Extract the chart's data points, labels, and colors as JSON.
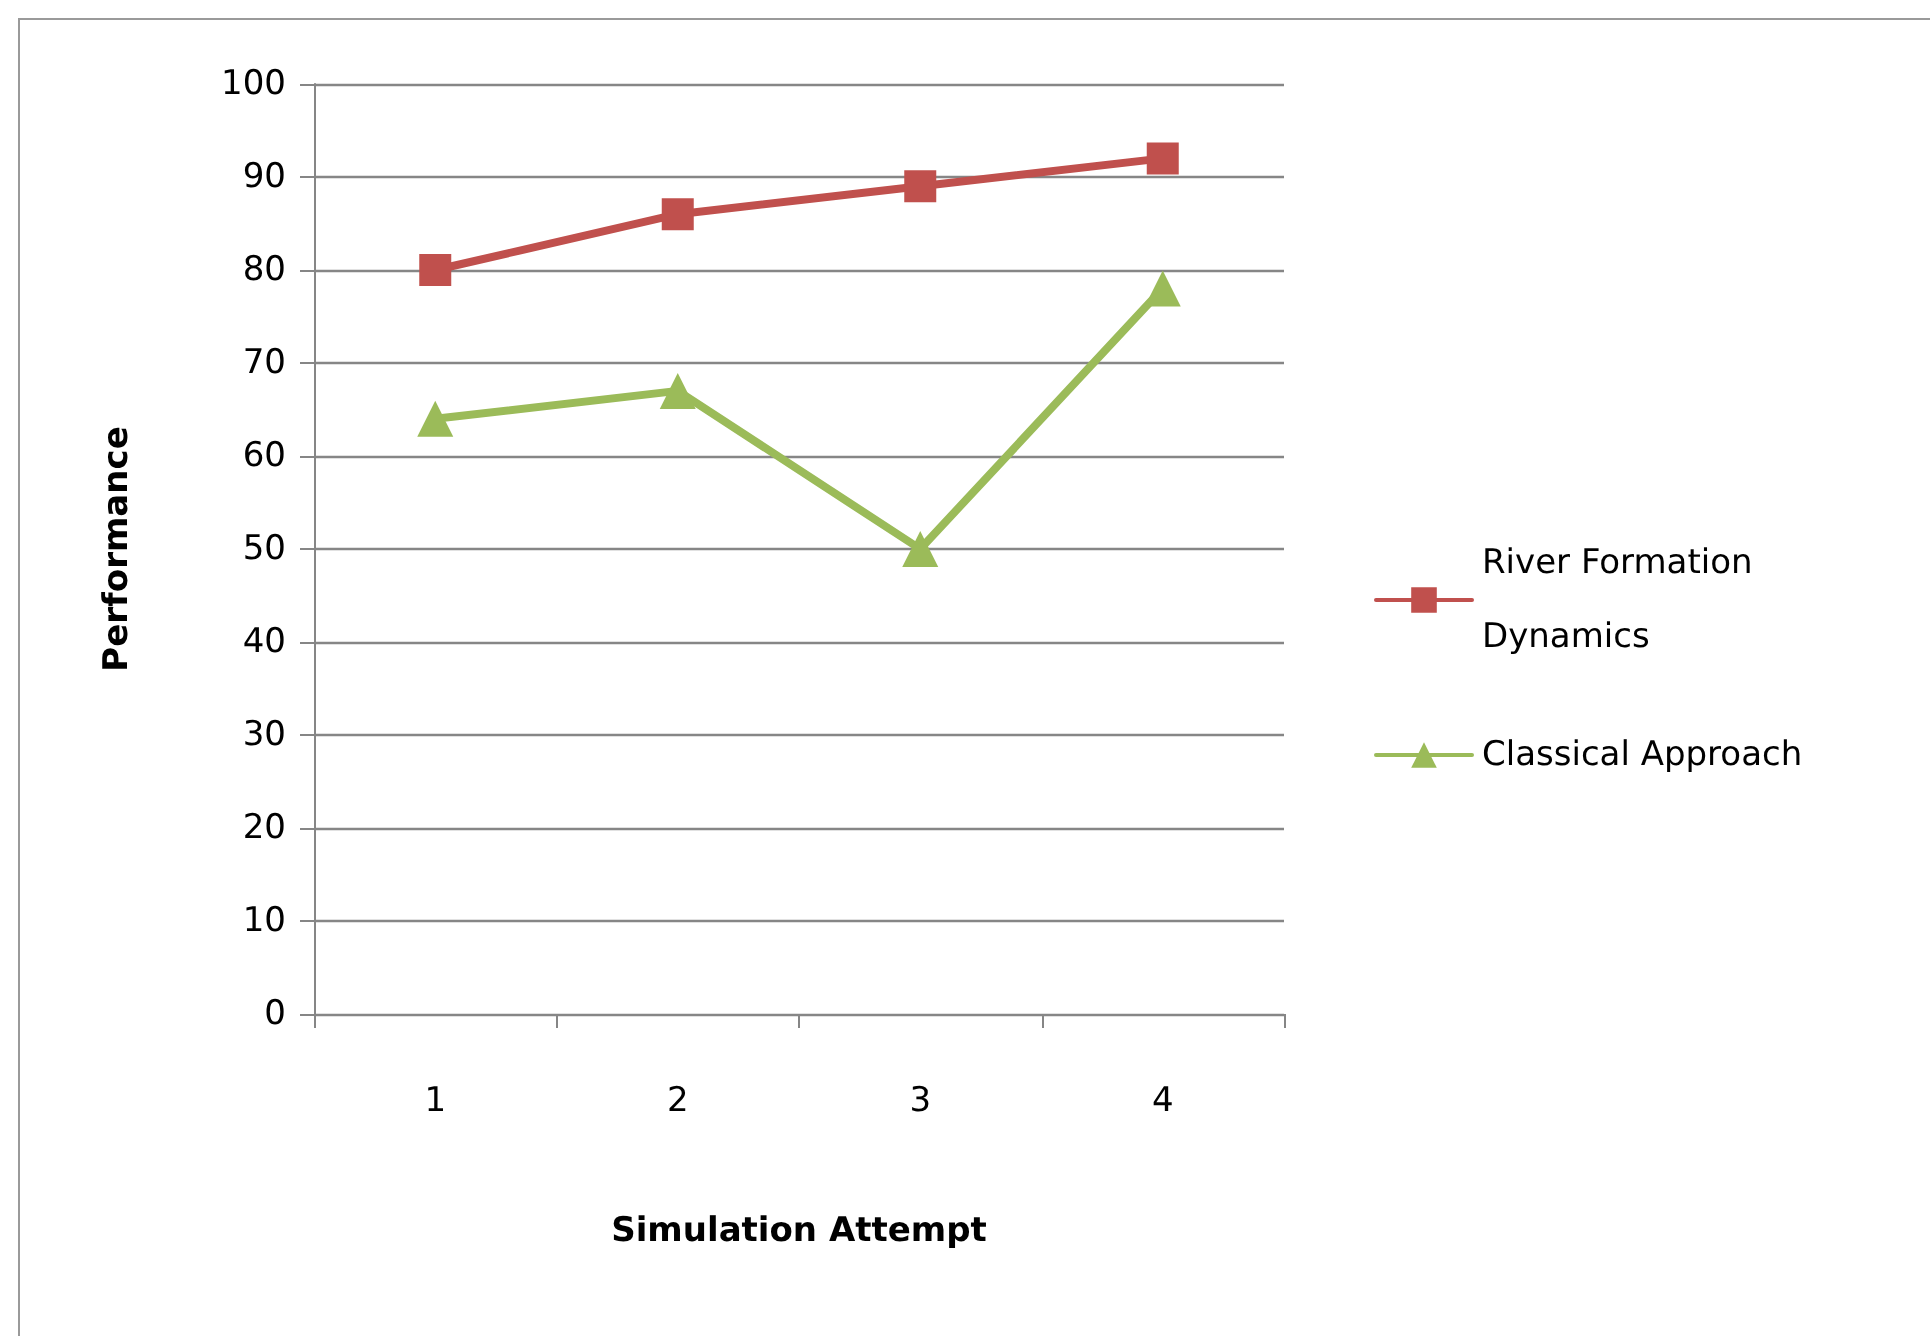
{
  "chart_data": {
    "type": "line",
    "xlabel": "Simulation Attempt",
    "ylabel": "Performance",
    "categories": [
      "1",
      "2",
      "3",
      "4"
    ],
    "series": [
      {
        "name": "River Formation Dynamics",
        "color": "#c0504d",
        "marker": "square",
        "values": [
          80,
          86,
          89,
          92
        ]
      },
      {
        "name": "Classical Approach",
        "color": "#9bbb59",
        "marker": "triangle",
        "values": [
          64,
          67,
          50,
          78
        ]
      }
    ],
    "ylim": [
      0,
      100
    ],
    "yticks": [
      0,
      10,
      20,
      30,
      40,
      50,
      60,
      70,
      80,
      90,
      100
    ],
    "grid": "y",
    "legend": "right",
    "line_style": "solid"
  }
}
